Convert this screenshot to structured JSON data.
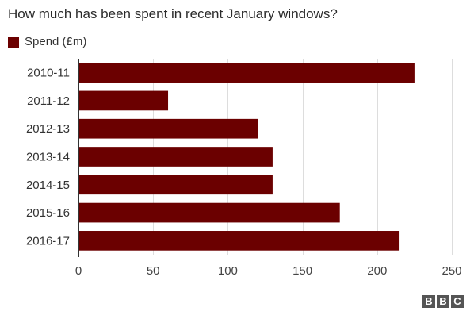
{
  "colors": {
    "bar": "#6b0000",
    "grid": "#dddddd",
    "axis": "#333333"
  },
  "chart_data": {
    "type": "bar",
    "orientation": "horizontal",
    "title": "How much has been spent in recent January windows?",
    "xlabel": "",
    "ylabel": "",
    "categories": [
      "2010-11",
      "2011-12",
      "2012-13",
      "2013-14",
      "2014-15",
      "2015-16",
      "2016-17"
    ],
    "series": [
      {
        "name": "Spend (£m)",
        "values": [
          225,
          60,
          120,
          130,
          130,
          175,
          215
        ]
      }
    ],
    "xlim": [
      0,
      250
    ],
    "xticks": [
      "0",
      "50",
      "100",
      "150",
      "200",
      "250"
    ],
    "grid": true,
    "legend": "top-left"
  },
  "footer": {
    "logo_letters": [
      "B",
      "B",
      "C"
    ]
  }
}
